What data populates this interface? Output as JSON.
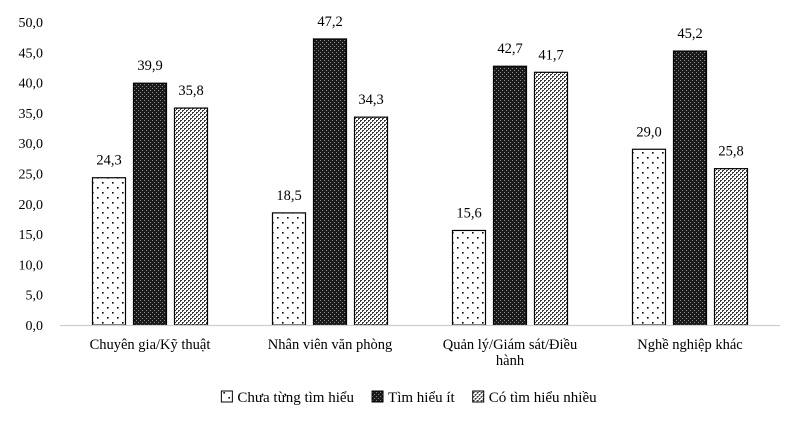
{
  "chart_data": {
    "type": "bar",
    "title": "",
    "xlabel": "",
    "ylabel": "",
    "ylim": [
      0,
      50
    ],
    "ytick_step": 5,
    "ytick_labels": [
      "0,0",
      "5,0",
      "10,0",
      "15,0",
      "20,0",
      "25,0",
      "30,0",
      "35,0",
      "40,0",
      "45,0",
      "50,0"
    ],
    "grid": false,
    "legend_position": "bottom",
    "categories": [
      [
        "Chuyên gia/Kỹ thuật"
      ],
      [
        "Nhân viên văn phòng"
      ],
      [
        "Quản lý/Giám sát/Điều",
        "hành"
      ],
      [
        "Nghề nghiệp khác"
      ]
    ],
    "series": [
      {
        "name": "Chưa từng tìm hiểu",
        "pattern": "sparse-dots",
        "values": [
          24.3,
          18.5,
          15.6,
          29.0
        ],
        "labels": [
          "24,3",
          "18,5",
          "15,6",
          "29,0"
        ]
      },
      {
        "name": "Tìm hiểu ít",
        "pattern": "dark-checker",
        "values": [
          39.9,
          47.2,
          42.7,
          45.2
        ],
        "labels": [
          "39,9",
          "47,2",
          "42,7",
          "45,2"
        ]
      },
      {
        "name": "Có tìm hiểu nhiều",
        "pattern": "light-checker",
        "values": [
          35.8,
          34.3,
          41.7,
          25.8
        ],
        "labels": [
          "35,8",
          "34,3",
          "41,7",
          "25,8"
        ]
      }
    ]
  }
}
